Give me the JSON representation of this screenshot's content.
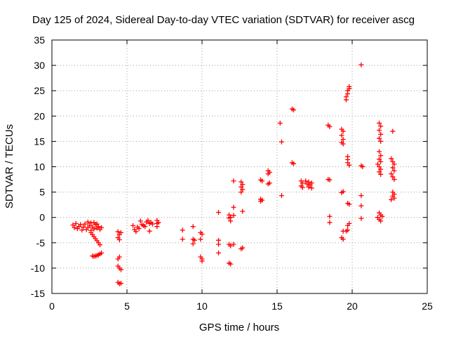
{
  "chart_data": {
    "type": "scatter",
    "title": "Day 125 of 2024, Sidereal Day-to-day VTEC variation (SDTVAR) for receiver ascg",
    "xlabel": "GPS time / hours",
    "ylabel": "SDTVAR / TECUs",
    "xlim": [
      0,
      25
    ],
    "ylim": [
      -15,
      35
    ],
    "xticks": [
      "0",
      "5",
      "10",
      "15",
      "20",
      "25"
    ],
    "yticks": [
      "-15",
      "-10",
      "-5",
      "0",
      "5",
      "10",
      "15",
      "20",
      "25",
      "30",
      "35"
    ],
    "grid": true,
    "marker": "+",
    "marker_color": "#ff0000",
    "series": [
      {
        "name": "SDTVAR",
        "points": [
          [
            1.4,
            -1.5
          ],
          [
            1.5,
            -2.0
          ],
          [
            1.6,
            -1.2
          ],
          [
            1.7,
            -2.2
          ],
          [
            1.8,
            -1.8
          ],
          [
            1.9,
            -1.4
          ],
          [
            2.0,
            -2.5
          ],
          [
            2.1,
            -1.9
          ],
          [
            2.2,
            -1.3
          ],
          [
            2.3,
            -2.4
          ],
          [
            2.4,
            -2.0
          ],
          [
            2.5,
            -1.6
          ],
          [
            2.6,
            -2.6
          ],
          [
            2.7,
            -1.9
          ],
          [
            2.8,
            -2.3
          ],
          [
            2.9,
            -1.4
          ],
          [
            3.0,
            -2.1
          ],
          [
            3.1,
            -1.8
          ],
          [
            3.2,
            -2.4
          ],
          [
            3.3,
            -2.0
          ],
          [
            2.4,
            -0.9
          ],
          [
            2.6,
            -1.1
          ],
          [
            2.8,
            -1.0
          ],
          [
            3.0,
            -1.3
          ],
          [
            2.6,
            -3.0
          ],
          [
            2.7,
            -3.4
          ],
          [
            2.8,
            -3.8
          ],
          [
            2.9,
            -4.2
          ],
          [
            3.0,
            -4.6
          ],
          [
            3.1,
            -5.0
          ],
          [
            3.2,
            -5.4
          ],
          [
            2.7,
            -7.6
          ],
          [
            2.8,
            -7.7
          ],
          [
            2.9,
            -7.6
          ],
          [
            3.0,
            -7.5
          ],
          [
            3.1,
            -7.4
          ],
          [
            3.2,
            -7.2
          ],
          [
            3.3,
            -7.0
          ],
          [
            4.4,
            -2.8
          ],
          [
            4.5,
            -3.4
          ],
          [
            4.6,
            -3.0
          ],
          [
            4.4,
            -4.0
          ],
          [
            4.5,
            -4.4
          ],
          [
            4.4,
            -8.2
          ],
          [
            4.5,
            -7.8
          ],
          [
            4.4,
            -9.6
          ],
          [
            4.5,
            -10.0
          ],
          [
            4.6,
            -10.3
          ],
          [
            4.4,
            -12.8
          ],
          [
            4.5,
            -13.1
          ],
          [
            4.6,
            -13.0
          ],
          [
            5.4,
            -1.6
          ],
          [
            5.5,
            -2.4
          ],
          [
            5.6,
            -2.8
          ],
          [
            5.7,
            -1.9
          ],
          [
            5.8,
            -2.2
          ],
          [
            5.9,
            -0.7
          ],
          [
            6.0,
            -1.4
          ],
          [
            6.1,
            -1.6
          ],
          [
            6.2,
            -1.8
          ],
          [
            6.3,
            -0.9
          ],
          [
            6.4,
            -0.6
          ],
          [
            6.5,
            -1.2
          ],
          [
            6.6,
            -1.0
          ],
          [
            6.7,
            -1.3
          ],
          [
            6.5,
            -2.7
          ],
          [
            7.0,
            -0.6
          ],
          [
            7.0,
            -1.2
          ],
          [
            7.0,
            -1.8
          ],
          [
            7.1,
            -1.0
          ],
          [
            8.7,
            -2.5
          ],
          [
            8.7,
            -4.3
          ],
          [
            9.4,
            -1.8
          ],
          [
            9.4,
            -4.3
          ],
          [
            9.4,
            -5.2
          ],
          [
            9.5,
            -4.5
          ],
          [
            9.9,
            -3.0
          ],
          [
            10.0,
            -3.3
          ],
          [
            9.9,
            -4.3
          ],
          [
            9.9,
            -7.8
          ],
          [
            10.0,
            -8.2
          ],
          [
            10.0,
            -8.6
          ],
          [
            11.1,
            1.0
          ],
          [
            11.1,
            -4.5
          ],
          [
            11.1,
            -5.3
          ],
          [
            11.1,
            -7.0
          ],
          [
            11.8,
            0.5
          ],
          [
            11.8,
            -0.1
          ],
          [
            11.9,
            0.0
          ],
          [
            11.9,
            -0.7
          ],
          [
            12.1,
            0.4
          ],
          [
            12.1,
            2.0
          ],
          [
            12.1,
            7.2
          ],
          [
            11.8,
            -5.3
          ],
          [
            11.9,
            -5.6
          ],
          [
            12.1,
            -5.3
          ],
          [
            11.8,
            -9.0
          ],
          [
            11.9,
            -9.2
          ],
          [
            12.6,
            7.0
          ],
          [
            12.7,
            6.5
          ],
          [
            12.6,
            6.0
          ],
          [
            12.7,
            5.5
          ],
          [
            12.6,
            5.0
          ],
          [
            12.7,
            1.2
          ],
          [
            12.7,
            -6.0
          ],
          [
            12.6,
            -6.2
          ],
          [
            13.9,
            3.2
          ],
          [
            13.9,
            3.6
          ],
          [
            14.0,
            3.4
          ],
          [
            14.0,
            7.2
          ],
          [
            13.9,
            7.4
          ],
          [
            14.4,
            8.6
          ],
          [
            14.5,
            8.9
          ],
          [
            14.4,
            9.2
          ],
          [
            14.5,
            6.8
          ],
          [
            14.4,
            6.6
          ],
          [
            15.2,
            18.6
          ],
          [
            15.3,
            14.9
          ],
          [
            15.3,
            4.3
          ],
          [
            16.0,
            21.4
          ],
          [
            16.1,
            21.2
          ],
          [
            16.0,
            10.8
          ],
          [
            16.1,
            10.6
          ],
          [
            16.6,
            7.2
          ],
          [
            16.7,
            6.8
          ],
          [
            16.6,
            6.2
          ],
          [
            16.7,
            5.9
          ],
          [
            16.9,
            7.2
          ],
          [
            17.0,
            6.6
          ],
          [
            17.1,
            6.0
          ],
          [
            17.2,
            6.4
          ],
          [
            17.3,
            5.8
          ],
          [
            17.1,
            7.0
          ],
          [
            17.3,
            6.8
          ],
          [
            18.4,
            18.2
          ],
          [
            18.5,
            17.9
          ],
          [
            18.4,
            7.5
          ],
          [
            18.5,
            7.4
          ],
          [
            18.5,
            0.2
          ],
          [
            18.5,
            -1.0
          ],
          [
            19.3,
            17.4
          ],
          [
            19.4,
            17.0
          ],
          [
            19.3,
            16.2
          ],
          [
            19.4,
            15.4
          ],
          [
            19.3,
            14.8
          ],
          [
            19.4,
            14.5
          ],
          [
            19.4,
            5.1
          ],
          [
            19.3,
            4.9
          ],
          [
            19.4,
            -2.7
          ],
          [
            19.3,
            -4.0
          ],
          [
            19.4,
            -4.3
          ],
          [
            19.6,
            23.2
          ],
          [
            19.6,
            23.8
          ],
          [
            19.7,
            24.4
          ],
          [
            19.7,
            25.0
          ],
          [
            19.8,
            25.4
          ],
          [
            19.8,
            25.8
          ],
          [
            19.7,
            12.0
          ],
          [
            19.7,
            11.4
          ],
          [
            19.7,
            10.8
          ],
          [
            19.8,
            10.3
          ],
          [
            19.7,
            2.8
          ],
          [
            19.8,
            2.6
          ],
          [
            19.7,
            -1.6
          ],
          [
            19.8,
            -1.2
          ],
          [
            19.7,
            -2.5
          ],
          [
            19.6,
            -2.7
          ],
          [
            20.6,
            30.1
          ],
          [
            20.6,
            10.2
          ],
          [
            20.7,
            10.0
          ],
          [
            20.6,
            4.3
          ],
          [
            20.6,
            2.3
          ],
          [
            20.6,
            -0.2
          ],
          [
            21.8,
            18.6
          ],
          [
            21.9,
            18.0
          ],
          [
            21.8,
            17.2
          ],
          [
            21.9,
            16.4
          ],
          [
            21.8,
            15.6
          ],
          [
            21.9,
            15.0
          ],
          [
            21.8,
            13.0
          ],
          [
            21.9,
            12.2
          ],
          [
            21.8,
            11.5
          ],
          [
            21.9,
            11.0
          ],
          [
            21.7,
            10.5
          ],
          [
            21.8,
            10.0
          ],
          [
            21.9,
            9.5
          ],
          [
            21.8,
            9.0
          ],
          [
            21.9,
            8.5
          ],
          [
            21.8,
            0.9
          ],
          [
            21.9,
            0.5
          ],
          [
            21.7,
            0.0
          ],
          [
            21.8,
            -0.4
          ],
          [
            21.9,
            -0.7
          ],
          [
            22.0,
            0.2
          ],
          [
            22.7,
            17.0
          ],
          [
            22.6,
            11.6
          ],
          [
            22.7,
            11.0
          ],
          [
            22.8,
            10.5
          ],
          [
            22.7,
            9.8
          ],
          [
            22.8,
            9.2
          ],
          [
            22.6,
            8.6
          ],
          [
            22.7,
            8.0
          ],
          [
            22.8,
            7.5
          ],
          [
            22.7,
            5.0
          ],
          [
            22.8,
            4.6
          ],
          [
            22.7,
            4.2
          ],
          [
            22.8,
            3.8
          ],
          [
            22.6,
            3.5
          ]
        ]
      }
    ]
  }
}
